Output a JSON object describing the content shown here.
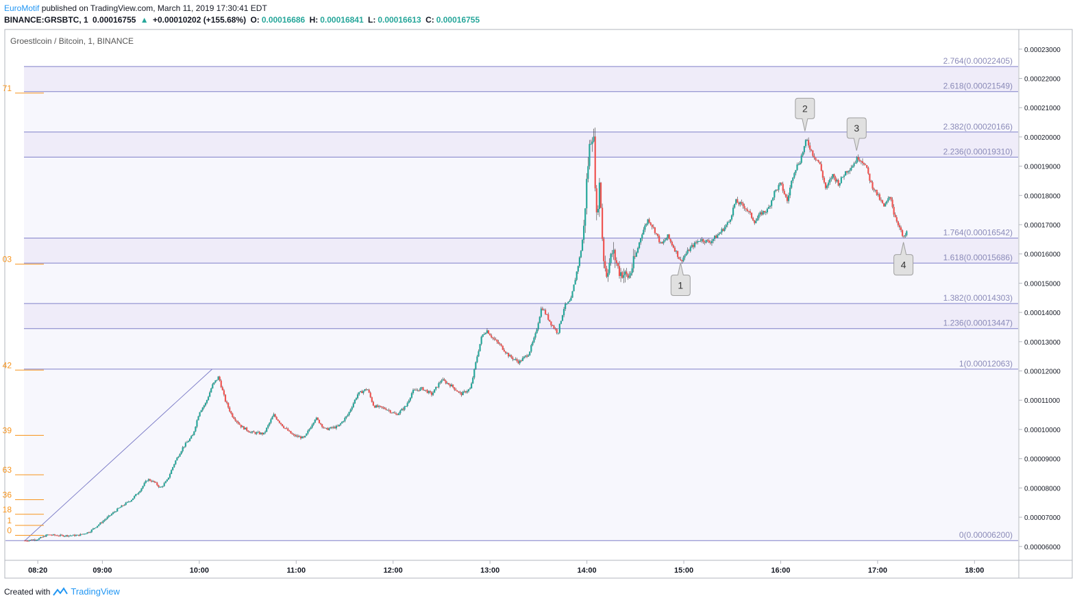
{
  "header": {
    "author": "EuroMotif",
    "published_text": "published on TradingView.com, March 11, 2019 17:30:41 EDT",
    "symbol": "BINANCE:GRSBTC, 1",
    "last": "0.00016755",
    "change": "+0.00010202 (+155.68%)",
    "o_label": "O:",
    "o_val": "0.00016686",
    "h_label": "H:",
    "h_val": "0.00016841",
    "l_label": "L:",
    "l_val": "0.00016613",
    "c_label": "C:",
    "c_val": "0.00016755"
  },
  "footer": {
    "created_with": "Created with",
    "brand": "TradingView"
  },
  "colors": {
    "up": "#26a69a",
    "down": "#ef5350",
    "fib_line": "#7e7ec8",
    "fib_text": "#8a8ab8",
    "left_levels": "#f7931a"
  },
  "chart_data": {
    "type": "candlestick",
    "title": "Groestlcoin / Bitcoin, 1, BINANCE",
    "ylim": [
      5.55e-05,
      0.0002365
    ],
    "y_ticks": [
      "0.00006000",
      "0.00007000",
      "0.00008000",
      "0.00009000",
      "0.00010000",
      "0.00011000",
      "0.00012000",
      "0.00013000",
      "0.00014000",
      "0.00015000",
      "0.00016000",
      "0.00017000",
      "0.00018000",
      "0.00019000",
      "0.00020000",
      "0.00021000",
      "0.00022000",
      "0.00023000"
    ],
    "x_ticks": [
      {
        "t": 500,
        "label": "08:20"
      },
      {
        "t": 540,
        "label": "09:00"
      },
      {
        "t": 600,
        "label": "10:00"
      },
      {
        "t": 660,
        "label": "11:00"
      },
      {
        "t": 720,
        "label": "12:00"
      },
      {
        "t": 780,
        "label": "13:00"
      },
      {
        "t": 840,
        "label": "14:00"
      },
      {
        "t": 900,
        "label": "15:00"
      },
      {
        "t": 960,
        "label": "16:00"
      },
      {
        "t": 1020,
        "label": "17:00"
      },
      {
        "t": 1080,
        "label": "18:00"
      }
    ],
    "x_range_minutes": [
      480,
      1107
    ],
    "fib_levels": [
      {
        "label": "2.764(0.00022405)",
        "value": 0.00022405
      },
      {
        "label": "2.618(0.00021549)",
        "value": 0.00021549
      },
      {
        "label": "2.382(0.00020166)",
        "value": 0.00020166
      },
      {
        "label": "2.236(0.00019310)",
        "value": 0.0001931
      },
      {
        "label": "1.764(0.00016542)",
        "value": 0.00016542
      },
      {
        "label": "1.618(0.00015686)",
        "value": 0.00015686
      },
      {
        "label": "1.382(0.00014303)",
        "value": 0.00014303
      },
      {
        "label": "1.236(0.00013447)",
        "value": 0.00013447
      },
      {
        "label": "1(0.00012063)",
        "value": 0.00012063
      },
      {
        "label": "0(0.00006200)",
        "value": 6.2e-05
      }
    ],
    "trend_line": [
      {
        "t": 492,
        "v": 6.2e-05
      },
      {
        "t": 608,
        "v": 0.00012063
      }
    ],
    "left_level_labels": [
      {
        "label": "71",
        "value": 0.000215
      },
      {
        "label": "03",
        "value": 0.0001565
      },
      {
        "label": "42",
        "value": 0.0001203
      },
      {
        "label": "39",
        "value": 9.8e-05
      },
      {
        "label": "63",
        "value": 8.45e-05
      },
      {
        "label": "36",
        "value": 7.6e-05
      },
      {
        "label": "18",
        "value": 7.1e-05
      },
      {
        "label": "1",
        "value": 6.72e-05
      },
      {
        "label": "0",
        "value": 6.38e-05
      }
    ],
    "callouts": [
      {
        "label": "1",
        "t": 898,
        "v": 0.000157,
        "dir": "below"
      },
      {
        "label": "2",
        "t": 975,
        "v": 0.000202,
        "dir": "above"
      },
      {
        "label": "3",
        "t": 1007,
        "v": 0.0001953,
        "dir": "above"
      },
      {
        "label": "4",
        "t": 1036,
        "v": 0.000164,
        "dir": "below"
      }
    ],
    "price_path": [
      [
        492,
        6.2e-05
      ],
      [
        500,
        6.25e-05
      ],
      [
        506,
        6.4e-05
      ],
      [
        515,
        6.37e-05
      ],
      [
        525,
        6.38e-05
      ],
      [
        532,
        6.5e-05
      ],
      [
        540,
        6.85e-05
      ],
      [
        550,
        7.3e-05
      ],
      [
        558,
        7.6e-05
      ],
      [
        563,
        7.9e-05
      ],
      [
        568,
        8.3e-05
      ],
      [
        572,
        8.2e-05
      ],
      [
        576,
        8e-05
      ],
      [
        580,
        8.25e-05
      ],
      [
        585,
        8.9e-05
      ],
      [
        590,
        9.4e-05
      ],
      [
        596,
        9.8e-05
      ],
      [
        600,
        0.000106
      ],
      [
        604,
        0.000109
      ],
      [
        608,
        0.000115
      ],
      [
        612,
        0.000118
      ],
      [
        616,
        0.00011
      ],
      [
        620,
        0.000105
      ],
      [
        626,
        0.000101
      ],
      [
        632,
        9.9e-05
      ],
      [
        640,
        9.85e-05
      ],
      [
        646,
        0.000105
      ],
      [
        652,
        0.000101
      ],
      [
        658,
        9.8e-05
      ],
      [
        665,
        9.7e-05
      ],
      [
        672,
        0.000104
      ],
      [
        678,
        0.0001
      ],
      [
        686,
        0.000101
      ],
      [
        692,
        0.000105
      ],
      [
        698,
        0.000112
      ],
      [
        704,
        0.000114
      ],
      [
        708,
        0.000108
      ],
      [
        716,
        0.000107
      ],
      [
        722,
        0.000105
      ],
      [
        728,
        0.000108
      ],
      [
        732,
        0.000113
      ],
      [
        738,
        0.000114
      ],
      [
        744,
        0.000112
      ],
      [
        750,
        0.000117
      ],
      [
        756,
        0.000115
      ],
      [
        762,
        0.000112
      ],
      [
        768,
        0.000114
      ],
      [
        772,
        0.000125
      ],
      [
        775,
        0.000132
      ],
      [
        778,
        0.000134
      ],
      [
        782,
        0.000131
      ],
      [
        786,
        0.000129
      ],
      [
        792,
        0.000125
      ],
      [
        798,
        0.000123
      ],
      [
        804,
        0.000126
      ],
      [
        808,
        0.000132
      ],
      [
        812,
        0.000142
      ],
      [
        818,
        0.000136
      ],
      [
        822,
        0.000133
      ],
      [
        826,
        0.000142
      ],
      [
        830,
        0.000144
      ],
      [
        833,
        0.000152
      ],
      [
        836,
        0.00016
      ],
      [
        838,
        0.000168
      ],
      [
        840,
        0.000186
      ],
      [
        842,
        0.000199
      ],
      [
        844,
        0.000202
      ],
      [
        846,
        0.000172
      ],
      [
        848,
        0.000185
      ],
      [
        850,
        0.00016
      ],
      [
        852,
        0.000153
      ],
      [
        856,
        0.000161
      ],
      [
        860,
        0.000154
      ],
      [
        866,
        0.000152
      ],
      [
        870,
        0.000159
      ],
      [
        874,
        0.000167
      ],
      [
        878,
        0.000172
      ],
      [
        882,
        0.000168
      ],
      [
        886,
        0.000163
      ],
      [
        890,
        0.000166
      ],
      [
        895,
        0.000161
      ],
      [
        898,
        0.0001575
      ],
      [
        904,
        0.000162
      ],
      [
        910,
        0.000165
      ],
      [
        916,
        0.000164
      ],
      [
        922,
        0.000167
      ],
      [
        928,
        0.000171
      ],
      [
        932,
        0.000178
      ],
      [
        938,
        0.000176
      ],
      [
        944,
        0.000171
      ],
      [
        948,
        0.000174
      ],
      [
        952,
        0.000175
      ],
      [
        956,
        0.000181
      ],
      [
        960,
        0.000184
      ],
      [
        964,
        0.000178
      ],
      [
        968,
        0.000188
      ],
      [
        972,
        0.000192
      ],
      [
        976,
        0.000199
      ],
      [
        980,
        0.000194
      ],
      [
        984,
        0.000191
      ],
      [
        988,
        0.000182
      ],
      [
        992,
        0.000187
      ],
      [
        996,
        0.000184
      ],
      [
        1000,
        0.000188
      ],
      [
        1004,
        0.00019
      ],
      [
        1008,
        0.000193
      ],
      [
        1012,
        0.000191
      ],
      [
        1016,
        0.000184
      ],
      [
        1020,
        0.00018
      ],
      [
        1024,
        0.000176
      ],
      [
        1028,
        0.00018
      ],
      [
        1030,
        0.000174
      ],
      [
        1033,
        0.00017
      ],
      [
        1036,
        0.000165
      ],
      [
        1038,
        0.0001675
      ]
    ]
  }
}
